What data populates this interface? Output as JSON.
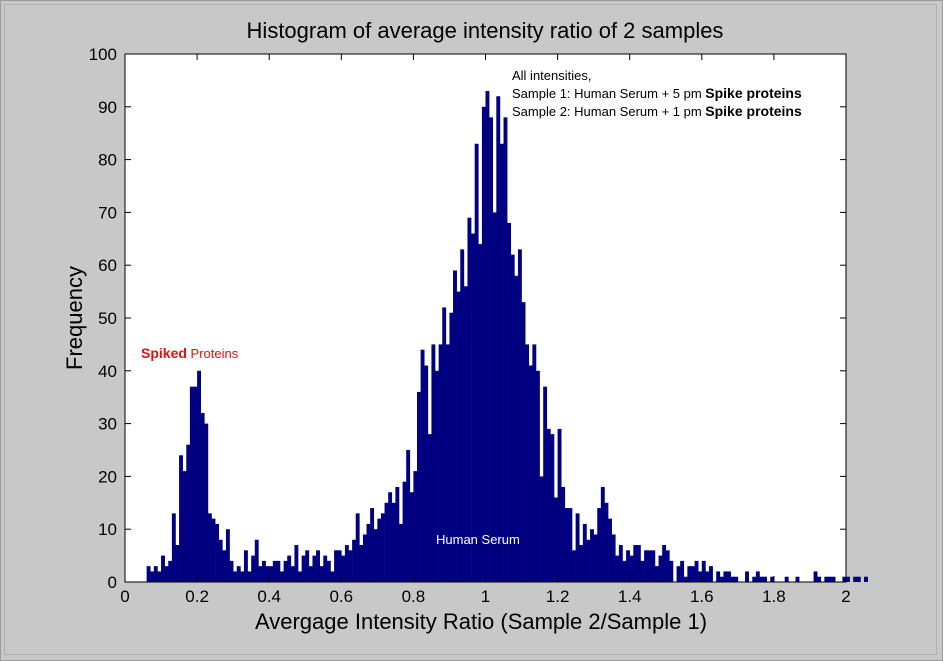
{
  "chart_data": {
    "type": "bar",
    "title": "Histogram of average intensity ratio of 2 samples",
    "xlabel": "Avergage Intensity Ratio (Sample 2/Sample 1)",
    "ylabel": "Frequency",
    "xlim": [
      0,
      2
    ],
    "ylim": [
      0,
      100
    ],
    "x_ticks": [
      "0",
      "0.2",
      "0.4",
      "0.6",
      "0.8",
      "1",
      "1.2",
      "1.4",
      "1.6",
      "1.8",
      "2"
    ],
    "y_ticks": [
      "0",
      "10",
      "20",
      "30",
      "40",
      "50",
      "60",
      "70",
      "80",
      "90",
      "100"
    ],
    "grid": false,
    "bar_color": "#000080",
    "bin_start": 0.06,
    "bin_width": 0.01,
    "values": [
      3,
      2,
      3,
      2,
      5,
      3,
      4,
      13,
      7,
      24,
      21,
      26,
      37,
      37,
      40,
      32,
      30,
      13,
      12,
      11,
      8,
      6,
      10,
      4,
      2,
      3,
      2,
      6,
      2,
      5,
      8,
      3,
      4,
      3,
      3,
      4,
      4,
      2,
      4,
      5,
      3,
      7,
      2,
      5,
      6,
      3,
      5,
      6,
      3,
      5,
      4,
      2,
      6,
      6,
      5,
      7,
      6,
      8,
      13,
      7,
      9,
      11,
      14,
      10,
      12,
      13,
      15,
      17,
      15,
      18,
      11,
      19,
      25,
      17,
      21,
      36,
      44,
      41,
      28,
      45,
      40,
      45,
      52,
      45,
      51,
      59,
      55,
      63,
      56,
      69,
      66,
      83,
      64,
      90,
      93,
      88,
      70,
      92,
      83,
      88,
      68,
      62,
      58,
      63,
      53,
      45,
      41,
      45,
      40,
      20,
      37,
      29,
      28,
      16,
      29,
      18,
      14,
      14,
      6,
      13,
      7,
      11,
      8,
      10,
      9,
      14,
      18,
      15,
      12,
      9,
      5,
      7,
      4,
      6,
      5,
      7,
      7,
      4,
      6,
      6,
      6,
      3,
      5,
      7,
      6,
      4,
      0,
      3,
      4,
      1,
      3,
      3,
      4,
      2,
      4,
      2,
      3,
      0,
      2,
      1,
      2,
      2,
      1,
      1,
      0,
      0,
      2,
      0,
      1,
      2,
      1,
      1,
      0,
      1,
      0,
      0,
      0,
      1,
      0,
      0,
      1,
      0,
      0,
      0,
      0,
      2,
      1,
      0,
      1,
      1,
      1,
      0,
      0,
      1,
      1,
      0,
      1,
      1,
      0,
      1
    ],
    "annotations": {
      "header_line": "All intensities,",
      "sample1_prefix": "Sample 1: Human Serum + 5 pm ",
      "sample2_prefix": "Sample 2: Human Serum + 1 pm ",
      "spike_label": "Spike proteins",
      "human_serum": "Human Serum",
      "spiked_bold": "Spiked",
      "spiked_rest": " Proteins"
    }
  }
}
